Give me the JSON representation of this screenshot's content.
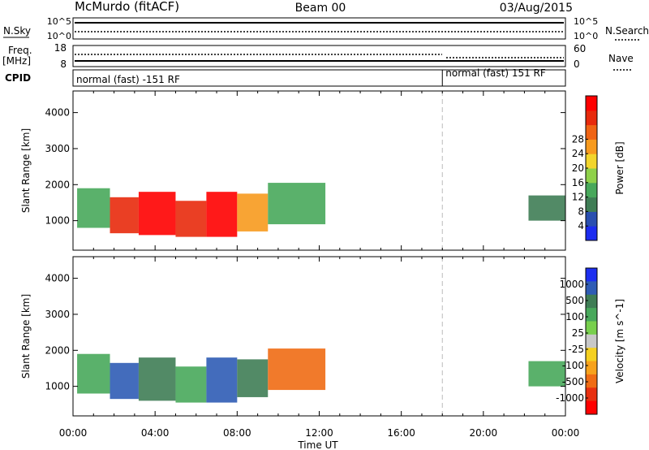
{
  "header": {
    "station": "McMurdo (fitACF)",
    "beam": "Beam 00",
    "date": "03/Aug/2015"
  },
  "status_panels": {
    "nsky_label": "N.Sky",
    "nsky_ticks": [
      "10^5",
      "10^0"
    ],
    "nsearch_label": "N.Search",
    "freq_label": "Freq.",
    "freq_unit": "[MHz]",
    "freq_ticks": [
      "18",
      "8"
    ],
    "nave_label": "Nave",
    "nave_ticks": [
      "60",
      "0"
    ],
    "cpid_label": "CPID",
    "cpid_modes": [
      "normal (fast) -151 RF",
      "normal (fast) 151 RF"
    ],
    "cpid_change_hour": 18.0
  },
  "time_axis": {
    "ticks": [
      "00:00",
      "04:00",
      "08:00",
      "12:00",
      "16:00",
      "20:00",
      "00:00"
    ],
    "label": "Time UT"
  },
  "chart_data": [
    {
      "type": "heatmap",
      "name": "power",
      "ylabel": "Slant Range [km]",
      "yticks": [
        "1000",
        "2000",
        "3000",
        "4000"
      ],
      "ylim": [
        180,
        4600
      ],
      "xlim_hours": [
        0,
        24
      ],
      "colorbar_label": "Power [dB]",
      "colorbar_ticks": [
        "4",
        "8",
        "12",
        "16",
        "20",
        "24",
        "28"
      ],
      "colors": [
        "#1c2cf0",
        "#2a4fb0",
        "#3f7d55",
        "#48a85b",
        "#8fd14a",
        "#f2d52c",
        "#f79a1e",
        "#f06414",
        "#e82a0c",
        "#ff0000"
      ],
      "echo_regions": [
        {
          "t0": 0.2,
          "t1": 1.8,
          "r0": 800,
          "r1": 1900,
          "level": 3
        },
        {
          "t0": 1.8,
          "t1": 3.2,
          "r0": 650,
          "r1": 1650,
          "level": 8
        },
        {
          "t0": 3.2,
          "t1": 5.0,
          "r0": 600,
          "r1": 1800,
          "level": 9
        },
        {
          "t0": 5.0,
          "t1": 6.5,
          "r0": 550,
          "r1": 1550,
          "level": 8
        },
        {
          "t0": 6.5,
          "t1": 8.0,
          "r0": 550,
          "r1": 1800,
          "level": 9
        },
        {
          "t0": 8.0,
          "t1": 9.5,
          "r0": 700,
          "r1": 1750,
          "level": 6
        },
        {
          "t0": 9.5,
          "t1": 12.3,
          "r0": 900,
          "r1": 2050,
          "level": 3
        },
        {
          "t0": 22.2,
          "t1": 24.0,
          "r0": 1000,
          "r1": 1700,
          "level": 2
        }
      ]
    },
    {
      "type": "heatmap",
      "name": "velocity",
      "ylabel": "Slant Range [km]",
      "yticks": [
        "1000",
        "2000",
        "3000",
        "4000"
      ],
      "ylim": [
        180,
        4600
      ],
      "xlim_hours": [
        0,
        24
      ],
      "colorbar_label": "Velocity [m s^-1]",
      "colorbar_ticks": [
        "1000",
        "500",
        "100",
        "25",
        "-25",
        "-100",
        "-500",
        "-1000"
      ],
      "colors": [
        "#1d2ff0",
        "#2f5cb5",
        "#3f7d55",
        "#48a85b",
        "#78d04d",
        "#c8c8c8",
        "#f5d020",
        "#f7a21c",
        "#f06c14",
        "#e83010",
        "#ff0000"
      ],
      "echo_regions": [
        {
          "t0": 0.2,
          "t1": 1.8,
          "r0": 800,
          "r1": 1900,
          "level": 3
        },
        {
          "t0": 1.8,
          "t1": 3.2,
          "r0": 650,
          "r1": 1650,
          "level": 1
        },
        {
          "t0": 3.2,
          "t1": 5.0,
          "r0": 600,
          "r1": 1800,
          "level": 2
        },
        {
          "t0": 5.0,
          "t1": 6.5,
          "r0": 550,
          "r1": 1550,
          "level": 3
        },
        {
          "t0": 6.5,
          "t1": 8.0,
          "r0": 550,
          "r1": 1800,
          "level": 1
        },
        {
          "t0": 8.0,
          "t1": 9.5,
          "r0": 700,
          "r1": 1750,
          "level": 2
        },
        {
          "t0": 9.5,
          "t1": 12.3,
          "r0": 900,
          "r1": 2050,
          "level": 8
        },
        {
          "t0": 22.2,
          "t1": 24.0,
          "r0": 1000,
          "r1": 1700,
          "level": 3
        }
      ]
    }
  ]
}
